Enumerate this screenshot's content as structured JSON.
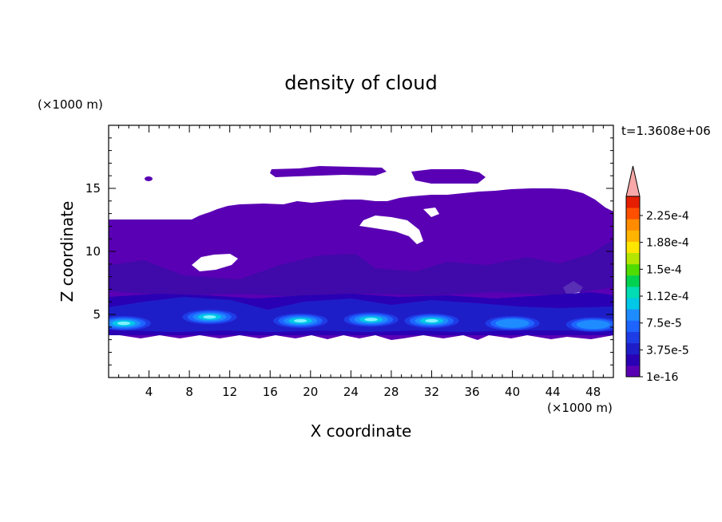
{
  "chart_data": {
    "type": "contour",
    "title": "density of cloud",
    "time_label": "t=1.3608e+06",
    "xlabel": "X coordinate",
    "ylabel": "Z coordinate",
    "x_unit": "(×1000 m)",
    "y_unit": "(×1000 m)",
    "xlim": [
      0,
      50
    ],
    "ylim": [
      0,
      20
    ],
    "x_ticks": [
      4,
      8,
      12,
      16,
      20,
      24,
      28,
      32,
      36,
      40,
      44,
      48
    ],
    "y_ticks": [
      5,
      10,
      15
    ],
    "colorbar": {
      "labels": [
        "2.25e-4",
        "1.88e-4",
        "1.5e-4",
        "1.12e-4",
        "7.5e-5",
        "3.75e-5",
        "1e-16"
      ],
      "colors": [
        "#5a00b4",
        "#2a00b4",
        "#1e1ec8",
        "#1e3ce6",
        "#1e64ff",
        "#1e8cff",
        "#00c8e6",
        "#00dcb4",
        "#00d250",
        "#50dc00",
        "#b4e600",
        "#ffe600",
        "#ffb400",
        "#ff8c00",
        "#ff5000",
        "#e61e00"
      ],
      "extend_color": "#f8a8a8"
    },
    "background_level_color": "#5a00b4",
    "cloud_regions": [
      {
        "name": "main cloud deck",
        "x_range": [
          0,
          50
        ],
        "z_range": [
          3.3,
          15
        ]
      },
      {
        "name": "upper cloud left",
        "x_range": [
          16,
          27
        ],
        "z_range": [
          15.8,
          16.5
        ]
      },
      {
        "name": "upper cloud right",
        "x_range": [
          30,
          36.5
        ],
        "z_range": [
          15.5,
          16.4
        ]
      },
      {
        "name": "small cloud",
        "x_range": [
          3.6,
          4.2
        ],
        "z_range": [
          15.5,
          15.9
        ]
      }
    ],
    "dense_cores": [
      {
        "x": 1.5,
        "z": 4.3,
        "level": "7.5e-5"
      },
      {
        "x": 10,
        "z": 4.8,
        "level": "7.5e-5"
      },
      {
        "x": 19,
        "z": 4.5,
        "level": "7.5e-5"
      },
      {
        "x": 26,
        "z": 4.6,
        "level": "7.5e-5"
      },
      {
        "x": 32,
        "z": 4.5,
        "level": "7.5e-5"
      },
      {
        "x": 40,
        "z": 4.3,
        "level": "3.75e-5"
      },
      {
        "x": 48,
        "z": 4.2,
        "level": "3.75e-5"
      }
    ]
  }
}
